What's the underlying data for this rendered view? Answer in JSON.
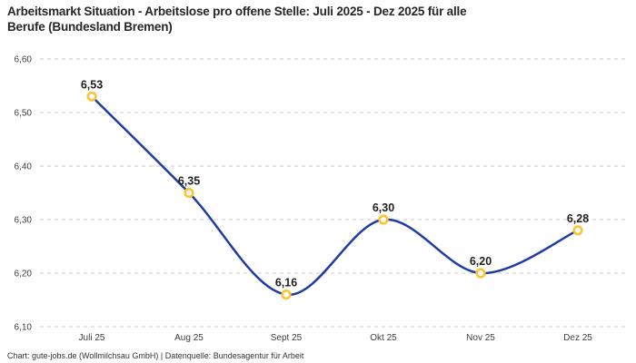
{
  "header": {
    "title": "Arbeitsmarkt Situation - Arbeitslose pro offene Stelle: Juli 2025 - Dez 2025 für alle\nBerufe (Bundesland Bremen)"
  },
  "footer": {
    "credit": "Chart: gute-jobs.de (Wollmilchsau GmbH) | Datenquelle: Bundesagentur für Arbeit"
  },
  "chart_data": {
    "type": "line",
    "title": "Arbeitsmarkt Situation - Arbeitslose pro offene Stelle: Juli 2025 - Dez 2025 für alle Berufe (Bundesland Bremen)",
    "categories": [
      "Juli 25",
      "Aug 25",
      "Sept 25",
      "Okt 25",
      "Nov 25",
      "Dez 25"
    ],
    "values": [
      6.53,
      6.35,
      6.16,
      6.3,
      6.2,
      6.28
    ],
    "value_labels": [
      "6,53",
      "6,35",
      "6,16",
      "6,30",
      "6,20",
      "6,28"
    ],
    "xlabel": "",
    "ylabel": "",
    "ylim": [
      6.1,
      6.6
    ],
    "y_ticks": [
      6.1,
      6.2,
      6.3,
      6.4,
      6.5,
      6.6
    ],
    "y_tick_labels": [
      "6,10",
      "6,20",
      "6,30",
      "6,40",
      "6,50",
      "6,60"
    ],
    "grid": "horizontal-dashed",
    "legend": "none",
    "line_smooth": true,
    "colors": {
      "line": "#1f3ba6",
      "marker_ring": "#ffc332",
      "marker_fill": "#ffffff",
      "gridline": "#cbcbcb",
      "title_text": "#262626",
      "data_label_text": "#1f1f1f",
      "axis_label_text": "#3d3d3d",
      "credit_text": "#333333",
      "background": "#ffffff"
    }
  }
}
